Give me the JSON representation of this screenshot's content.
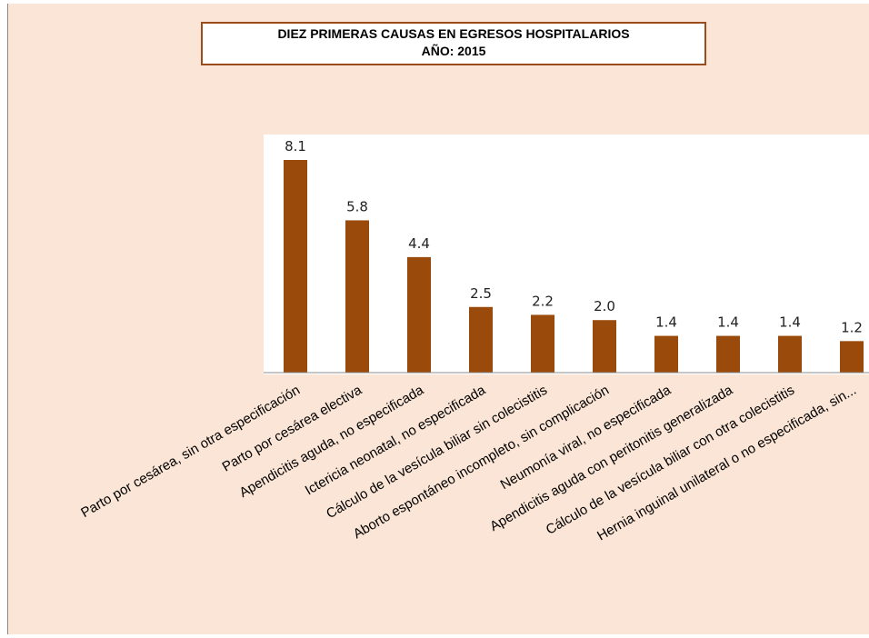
{
  "chart_data": {
    "type": "bar",
    "title": "DIEZ PRIMERAS CAUSAS EN EGRESOS HOSPITALARIOS",
    "subtitle": "AÑO: 2015",
    "categories": [
      "Parto por cesárea, sin otra especificación",
      "Parto por cesárea electiva",
      "Apendicitis aguda, no especificada",
      "Ictericia neonatal, no especificada",
      "Cálculo de la vesícula biliar sin colecistitis",
      "Aborto espontáneo incompleto, sin complicación",
      "Neumonía viral, no especificada",
      "Apendicitis aguda con peritonitis generalizada",
      "Cálculo de la vesícula biliar con otra colecistitis",
      "Hernia inguinal unilateral o no especificada, sin..."
    ],
    "values": [
      8.1,
      5.8,
      4.4,
      2.5,
      2.2,
      2.0,
      1.4,
      1.4,
      1.4,
      1.2
    ],
    "value_labels": [
      "8.1",
      "5.8",
      "4.4",
      "2.5",
      "2.2",
      "2.0",
      "1.4",
      "1.4",
      "1.4",
      "1.2"
    ],
    "ylim": [
      0,
      8.5
    ],
    "xlabel": "",
    "ylabel": "",
    "grid": false,
    "legend": "none",
    "bar_color": "#9a4a0a"
  }
}
